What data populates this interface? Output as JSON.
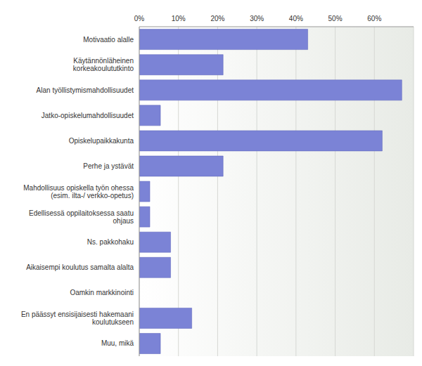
{
  "chart_data": {
    "type": "bar",
    "orientation": "horizontal",
    "categories": [
      "Motivaatio alalle",
      "Käytännönläheinen korkeakoulututkinto",
      "Alan työllistymismahdollisuudet",
      "Jatko-opiskelumahdollisuudet",
      "Opiskelupaikkakunta",
      "Perhe ja ystävät",
      "Mahdollisuus opiskella työn ohessa (esim. ilta-/ verkko-opetus)",
      "Edellisessä oppilaitoksessa saatu ohjaus",
      "Ns. pakkohaku",
      "Aikaisempi koulutus samalta alalta",
      "Oamkin markkinointi",
      "En päässyt ensisijaisesti hakemaani koulutukseen",
      "Muu, mikä"
    ],
    "values": [
      43,
      21.4,
      67,
      5.4,
      62,
      21.4,
      2.7,
      2.7,
      8,
      8,
      0,
      13.4,
      5.4
    ],
    "color": "#7b83d6",
    "xlim": [
      0,
      70
    ],
    "xticks": [
      {
        "value": 0,
        "label": "0%"
      },
      {
        "value": 10,
        "label": "10%"
      },
      {
        "value": 20,
        "label": "20%"
      },
      {
        "value": 30,
        "label": "30%"
      },
      {
        "value": 40,
        "label": "40%"
      },
      {
        "value": 50,
        "label": "50%"
      },
      {
        "value": 60,
        "label": "60%"
      }
    ],
    "grid": true
  }
}
